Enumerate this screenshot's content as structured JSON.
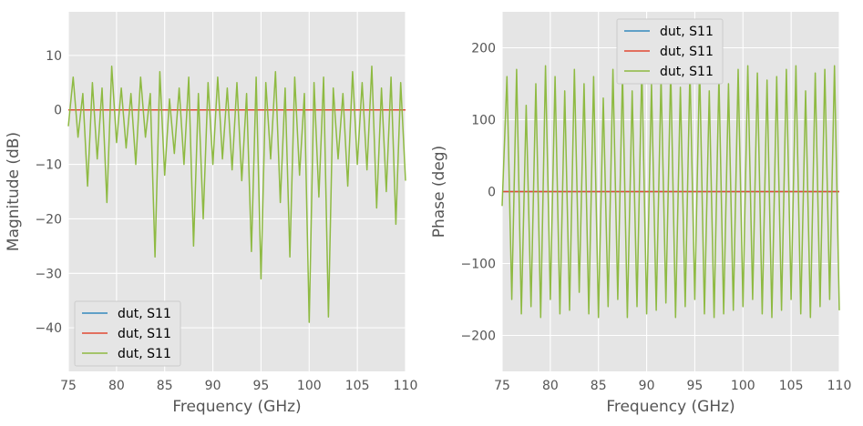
{
  "chart_data": [
    {
      "type": "line",
      "title": "",
      "xlabel": "Frequency (GHz)",
      "ylabel": "Magnitude (dB)",
      "xlim": [
        75,
        110
      ],
      "ylim": [
        -48,
        18
      ],
      "xticks": [
        75,
        80,
        85,
        90,
        95,
        100,
        105,
        110
      ],
      "yticks": [
        10,
        0,
        -10,
        -20,
        -30,
        -40
      ],
      "grid": true,
      "legend_position": "bottom-left",
      "colors": [
        "#348ABD",
        "#E24A33",
        "#8EBA42"
      ],
      "series": [
        {
          "name": "dut, S11",
          "x": [
            75,
            110
          ],
          "y": [
            0,
            0
          ]
        },
        {
          "name": "dut, S11",
          "x": [
            75,
            110
          ],
          "y": [
            0,
            0
          ]
        },
        {
          "name": "dut, S11",
          "x": [
            75.0,
            75.5,
            76.0,
            76.5,
            77.0,
            77.5,
            78.0,
            78.5,
            79.0,
            79.5,
            80.0,
            80.5,
            81.0,
            81.5,
            82.0,
            82.5,
            83.0,
            83.5,
            84.0,
            84.5,
            85.0,
            85.5,
            86.0,
            86.5,
            87.0,
            87.5,
            88.0,
            88.5,
            89.0,
            89.5,
            90.0,
            90.5,
            91.0,
            91.5,
            92.0,
            92.5,
            93.0,
            93.5,
            94.0,
            94.5,
            95.0,
            95.5,
            96.0,
            96.5,
            97.0,
            97.5,
            98.0,
            98.5,
            99.0,
            99.5,
            100.0,
            100.5,
            101.0,
            101.5,
            102.0,
            102.5,
            103.0,
            103.5,
            104.0,
            104.5,
            105.0,
            105.5,
            106.0,
            106.5,
            107.0,
            107.5,
            108.0,
            108.5,
            109.0,
            109.5,
            110.0
          ],
          "y": [
            -3,
            6,
            -5,
            3,
            -14,
            5,
            -9,
            4,
            -17,
            8,
            -6,
            4,
            -7,
            3,
            -10,
            6,
            -5,
            3,
            -27,
            7,
            -12,
            2,
            -8,
            4,
            -10,
            6,
            -25,
            3,
            -20,
            5,
            -10,
            6,
            -9,
            4,
            -11,
            5,
            -13,
            3,
            -26,
            6,
            -31,
            5,
            -9,
            7,
            -17,
            4,
            -27,
            6,
            -12,
            3,
            -39,
            5,
            -16,
            6,
            -38,
            4,
            -9,
            3,
            -14,
            7,
            -10,
            5,
            -11,
            8,
            -18,
            4,
            -15,
            6,
            -21,
            5,
            -13
          ]
        }
      ]
    },
    {
      "type": "line",
      "title": "",
      "xlabel": "Frequency (GHz)",
      "ylabel": "Phase (deg)",
      "xlim": [
        75,
        110
      ],
      "ylim": [
        -250,
        250
      ],
      "xticks": [
        75,
        80,
        85,
        90,
        95,
        100,
        105,
        110
      ],
      "yticks": [
        200,
        100,
        0,
        -100,
        -200
      ],
      "grid": true,
      "legend_position": "top-center",
      "colors": [
        "#348ABD",
        "#E24A33",
        "#8EBA42"
      ],
      "series": [
        {
          "name": "dut, S11",
          "x": [
            75,
            110
          ],
          "y": [
            0,
            0
          ]
        },
        {
          "name": "dut, S11",
          "x": [
            75,
            110
          ],
          "y": [
            0,
            0
          ]
        },
        {
          "name": "dut, S11",
          "x": [
            75.0,
            75.5,
            76.0,
            76.5,
            77.0,
            77.5,
            78.0,
            78.5,
            79.0,
            79.5,
            80.0,
            80.5,
            81.0,
            81.5,
            82.0,
            82.5,
            83.0,
            83.5,
            84.0,
            84.5,
            85.0,
            85.5,
            86.0,
            86.5,
            87.0,
            87.5,
            88.0,
            88.5,
            89.0,
            89.5,
            90.0,
            90.5,
            91.0,
            91.5,
            92.0,
            92.5,
            93.0,
            93.5,
            94.0,
            94.5,
            95.0,
            95.5,
            96.0,
            96.5,
            97.0,
            97.5,
            98.0,
            98.5,
            99.0,
            99.5,
            100.0,
            100.5,
            101.0,
            101.5,
            102.0,
            102.5,
            103.0,
            103.5,
            104.0,
            104.5,
            105.0,
            105.5,
            106.0,
            106.5,
            107.0,
            107.5,
            108.0,
            108.5,
            109.0,
            109.5,
            110.0
          ],
          "y": [
            -20,
            160,
            -150,
            170,
            -170,
            120,
            -160,
            150,
            -175,
            175,
            -150,
            160,
            -170,
            140,
            -165,
            170,
            -140,
            150,
            -170,
            160,
            -175,
            130,
            -160,
            170,
            -150,
            165,
            -175,
            140,
            -160,
            175,
            -170,
            150,
            -165,
            160,
            -155,
            170,
            -175,
            145,
            -160,
            170,
            -150,
            175,
            -170,
            140,
            -175,
            160,
            -170,
            150,
            -165,
            170,
            -160,
            175,
            -150,
            165,
            -170,
            155,
            -175,
            160,
            -165,
            170,
            -150,
            175,
            -170,
            140,
            -175,
            165,
            -160,
            170,
            -150,
            175,
            -165
          ]
        }
      ]
    }
  ]
}
